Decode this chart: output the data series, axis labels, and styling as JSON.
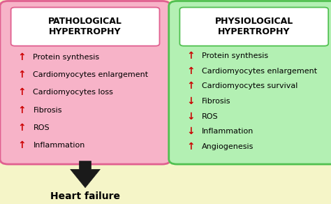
{
  "background_color": "#f5f5c8",
  "left_box": {
    "title": "PATHOLOGICAL\nHYPERTROPHY",
    "bg_color": "#f7b3c8",
    "border_color": "#e06090",
    "items": [
      {
        "arrow": "↑",
        "text": "Protein synthesis"
      },
      {
        "arrow": "↑",
        "text": "Cardiomyocytes enlargement"
      },
      {
        "arrow": "↑",
        "text": "Cardiomyocytes loss"
      },
      {
        "arrow": "↑",
        "text": "Fibrosis"
      },
      {
        "arrow": "↑",
        "text": "ROS"
      },
      {
        "arrow": "↑",
        "text": "Inflammation"
      }
    ]
  },
  "right_box": {
    "title": "PHYSIOLOGICAL\nHYPERTROPHY",
    "bg_color": "#b3f0b3",
    "border_color": "#50c050",
    "items": [
      {
        "arrow": "↑",
        "text": "Protein synthesis"
      },
      {
        "arrow": "↑",
        "text": "Cardiomyocytes enlargement"
      },
      {
        "arrow": "↑",
        "text": "Cardiomyocytes survival"
      },
      {
        "arrow": "↓",
        "text": "Fibrosis"
      },
      {
        "arrow": "↓",
        "text": "ROS"
      },
      {
        "arrow": "↓",
        "text": "Inflammation"
      },
      {
        "arrow": "↑",
        "text": "Angiogenesis"
      }
    ]
  },
  "footer_text": "Heart failure",
  "arrow_up_color": "#cc0000",
  "arrow_down_color": "#cc0000",
  "big_arrow_color": "#1a1a1a",
  "title_fontsize": 9,
  "item_fontsize": 8,
  "footer_fontsize": 10
}
